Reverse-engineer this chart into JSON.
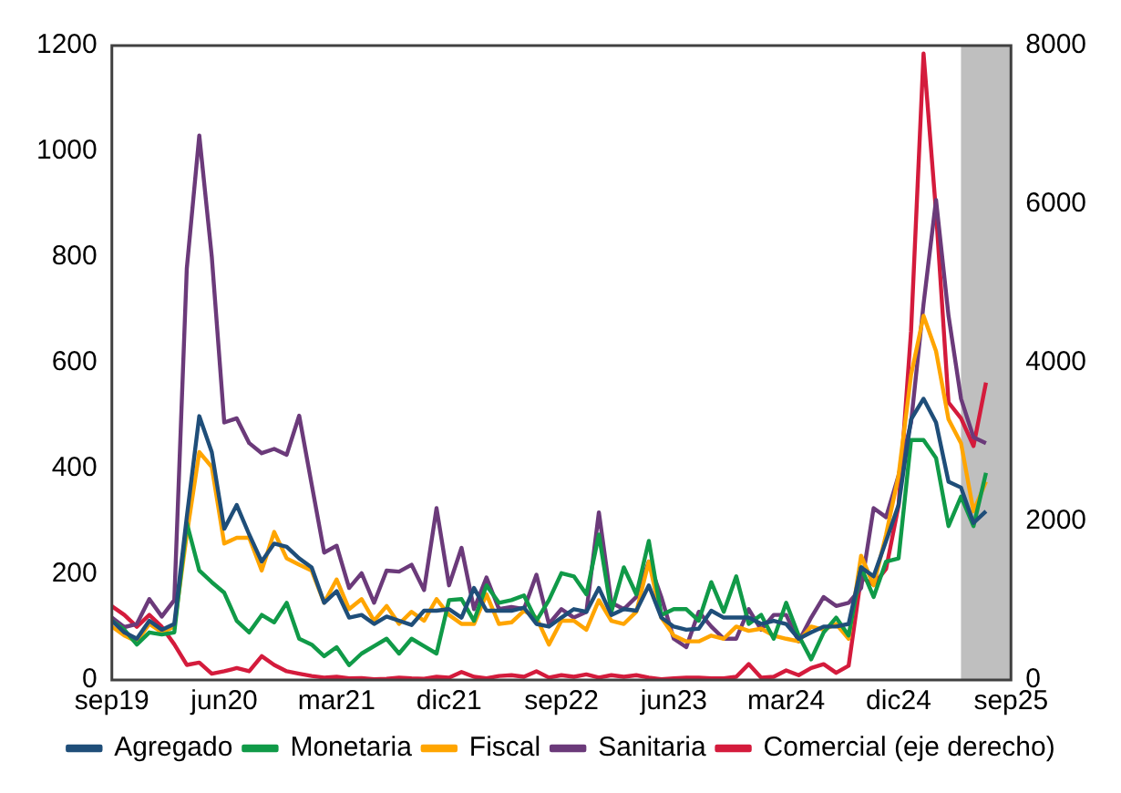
{
  "chart_data": {
    "type": "line",
    "x": [
      "2019-09",
      "2019-10",
      "2019-11",
      "2019-12",
      "2020-01",
      "2020-02",
      "2020-03",
      "2020-04",
      "2020-05",
      "2020-06",
      "2020-07",
      "2020-08",
      "2020-09",
      "2020-10",
      "2020-11",
      "2020-12",
      "2021-01",
      "2021-02",
      "2021-03",
      "2021-04",
      "2021-05",
      "2021-06",
      "2021-07",
      "2021-08",
      "2021-09",
      "2021-10",
      "2021-11",
      "2021-12",
      "2022-01",
      "2022-02",
      "2022-03",
      "2022-04",
      "2022-05",
      "2022-06",
      "2022-07",
      "2022-08",
      "2022-09",
      "2022-10",
      "2022-11",
      "2022-12",
      "2023-01",
      "2023-02",
      "2023-03",
      "2023-04",
      "2023-05",
      "2023-06",
      "2023-07",
      "2023-08",
      "2023-09",
      "2023-10",
      "2023-11",
      "2023-12",
      "2024-01",
      "2024-02",
      "2024-03",
      "2024-04",
      "2024-05",
      "2024-06",
      "2024-07",
      "2024-08",
      "2024-09",
      "2024-10",
      "2024-11",
      "2024-12",
      "2025-01",
      "2025-02",
      "2025-03",
      "2025-04",
      "2025-05",
      "2025-06",
      "2025-07"
    ],
    "xlim": [
      "2019-09",
      "2025-09"
    ],
    "xticks": [
      {
        "value": "2019-09",
        "label": "sep19"
      },
      {
        "value": "2020-06",
        "label": "jun20"
      },
      {
        "value": "2021-03",
        "label": "mar21"
      },
      {
        "value": "2021-12",
        "label": "dic21"
      },
      {
        "value": "2022-09",
        "label": "sep22"
      },
      {
        "value": "2023-06",
        "label": "jun23"
      },
      {
        "value": "2024-03",
        "label": "mar24"
      },
      {
        "value": "2024-12",
        "label": "dic24"
      },
      {
        "value": "2025-09",
        "label": "sep25"
      }
    ],
    "ylim": [
      0,
      1200
    ],
    "yticks": [
      0,
      200,
      400,
      600,
      800,
      1000,
      1200
    ],
    "y2lim": [
      0,
      8000
    ],
    "y2ticks": [
      0,
      2000,
      4000,
      6000,
      8000
    ],
    "bands": [
      {
        "axis": "x",
        "from": "2025-05",
        "to": "2025-09",
        "color": "#bfbfbf"
      }
    ],
    "legend": "bottom",
    "grid": false,
    "marker": "none",
    "line_style": "solid",
    "series": [
      {
        "name": "Agregado",
        "color": "#1f4e79",
        "values": [
          112,
          90,
          78,
          112,
          95,
          106,
          308,
          499,
          431,
          286,
          331,
          275,
          224,
          258,
          252,
          230,
          213,
          146,
          168,
          118,
          123,
          106,
          120,
          112,
          104,
          131,
          131,
          134,
          118,
          174,
          131,
          131,
          131,
          137,
          106,
          101,
          118,
          134,
          129,
          174,
          123,
          134,
          131,
          179,
          118,
          101,
          95,
          97,
          131,
          118,
          118,
          118,
          106,
          112,
          106,
          78,
          90,
          101,
          101,
          106,
          213,
          196,
          263,
          331,
          493,
          532,
          487,
          375,
          364,
          297,
          319
        ]
      },
      {
        "name": "Monetaria",
        "color": "#109a48",
        "values": [
          112,
          95,
          67,
          90,
          86,
          90,
          297,
          207,
          185,
          165,
          112,
          90,
          123,
          109,
          146,
          78,
          67,
          45,
          62,
          28,
          50,
          64,
          78,
          50,
          78,
          64,
          50,
          151,
          153,
          112,
          179,
          146,
          151,
          160,
          112,
          151,
          202,
          196,
          162,
          275,
          129,
          213,
          162,
          263,
          123,
          134,
          134,
          112,
          185,
          129,
          196,
          106,
          123,
          78,
          146,
          84,
          39,
          90,
          118,
          84,
          213,
          157,
          224,
          230,
          454,
          454,
          420,
          291,
          347,
          291,
          392
        ]
      },
      {
        "name": "Fiscal",
        "color": "#ffa500",
        "values": [
          101,
          84,
          73,
          106,
          90,
          101,
          275,
          431,
          403,
          258,
          269,
          269,
          207,
          280,
          230,
          218,
          207,
          146,
          190,
          134,
          153,
          112,
          140,
          106,
          129,
          112,
          153,
          123,
          106,
          106,
          162,
          106,
          109,
          131,
          118,
          67,
          112,
          112,
          95,
          151,
          112,
          106,
          129,
          224,
          118,
          84,
          73,
          73,
          84,
          78,
          101,
          93,
          97,
          84,
          78,
          73,
          101,
          95,
          106,
          78,
          235,
          179,
          275,
          387,
          577,
          689,
          622,
          493,
          448,
          319,
          375
        ]
      },
      {
        "name": "Sanitaria",
        "color": "#6b3a7a",
        "values": [
          118,
          100,
          106,
          153,
          120,
          151,
          778,
          1030,
          801,
          487,
          495,
          448,
          429,
          437,
          426,
          500,
          370,
          241,
          254,
          174,
          202,
          146,
          207,
          205,
          218,
          170,
          325,
          179,
          250,
          134,
          194,
          134,
          138,
          134,
          199,
          106,
          134,
          118,
          129,
          317,
          146,
          134,
          157,
          224,
          157,
          78,
          62,
          129,
          101,
          78,
          78,
          134,
          95,
          123,
          123,
          73,
          118,
          157,
          140,
          146,
          174,
          325,
          308,
          387,
          487,
          711,
          908,
          689,
          532,
          459,
          448
        ]
      },
      {
        "name": "Comercial (eje derecho)",
        "color": "#d41b3c",
        "axis": "y2",
        "values": [
          930,
          820,
          670,
          820,
          670,
          450,
          190,
          220,
          80,
          110,
          150,
          110,
          300,
          190,
          110,
          80,
          50,
          30,
          40,
          20,
          25,
          10,
          15,
          30,
          20,
          15,
          40,
          30,
          100,
          40,
          20,
          50,
          60,
          40,
          110,
          30,
          60,
          40,
          70,
          30,
          60,
          40,
          60,
          30,
          10,
          20,
          30,
          30,
          20,
          20,
          40,
          200,
          30,
          40,
          120,
          60,
          150,
          200,
          90,
          180,
          1300,
          1200,
          1400,
          2200,
          4400,
          7900,
          5900,
          3500,
          3300,
          2950,
          3750
        ]
      }
    ]
  }
}
